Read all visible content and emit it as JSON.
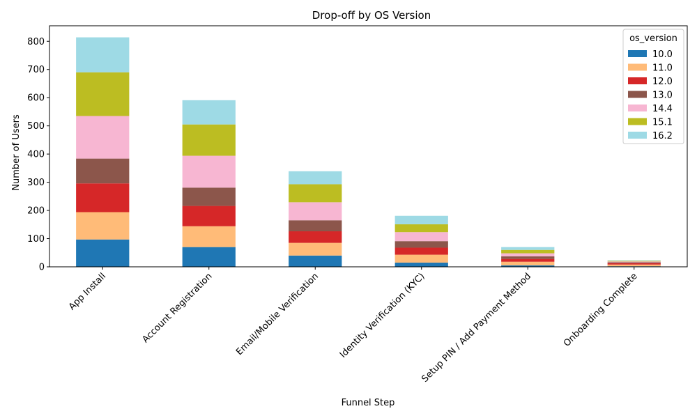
{
  "chart_data": {
    "type": "bar",
    "stacked": true,
    "title": "Drop-off by OS Version",
    "xlabel": "Funnel Step",
    "ylabel": "Number of Users",
    "ylim": [
      0,
      855
    ],
    "yticks": [
      0,
      100,
      200,
      300,
      400,
      500,
      600,
      700,
      800
    ],
    "categories": [
      "App Install",
      "Account Registration",
      "Email/Mobile Verification",
      "Identity Verification (KYC)",
      "Setup PIN / Add Payment Method",
      "Onboarding Complete"
    ],
    "legend_title": "os_version",
    "legend_position": "top-right",
    "grid": false,
    "series": [
      {
        "name": "10.0",
        "color": "#1f77b4",
        "values": [
          97,
          70,
          40,
          15,
          5,
          2
        ]
      },
      {
        "name": "11.0",
        "color": "#ffbb78",
        "values": [
          97,
          74,
          45,
          28,
          13,
          6
        ]
      },
      {
        "name": "12.0",
        "color": "#d62728",
        "values": [
          102,
          72,
          41,
          25,
          10,
          5
        ]
      },
      {
        "name": "13.0",
        "color": "#8c564b",
        "values": [
          88,
          65,
          39,
          23,
          9,
          3
        ]
      },
      {
        "name": "14.4",
        "color": "#f7b6d2",
        "values": [
          151,
          113,
          64,
          32,
          11,
          3
        ]
      },
      {
        "name": "15.1",
        "color": "#bcbd22",
        "values": [
          155,
          111,
          64,
          28,
          12,
          2
        ]
      },
      {
        "name": "16.2",
        "color": "#9edae5",
        "values": [
          124,
          86,
          46,
          30,
          10,
          2
        ]
      }
    ]
  }
}
